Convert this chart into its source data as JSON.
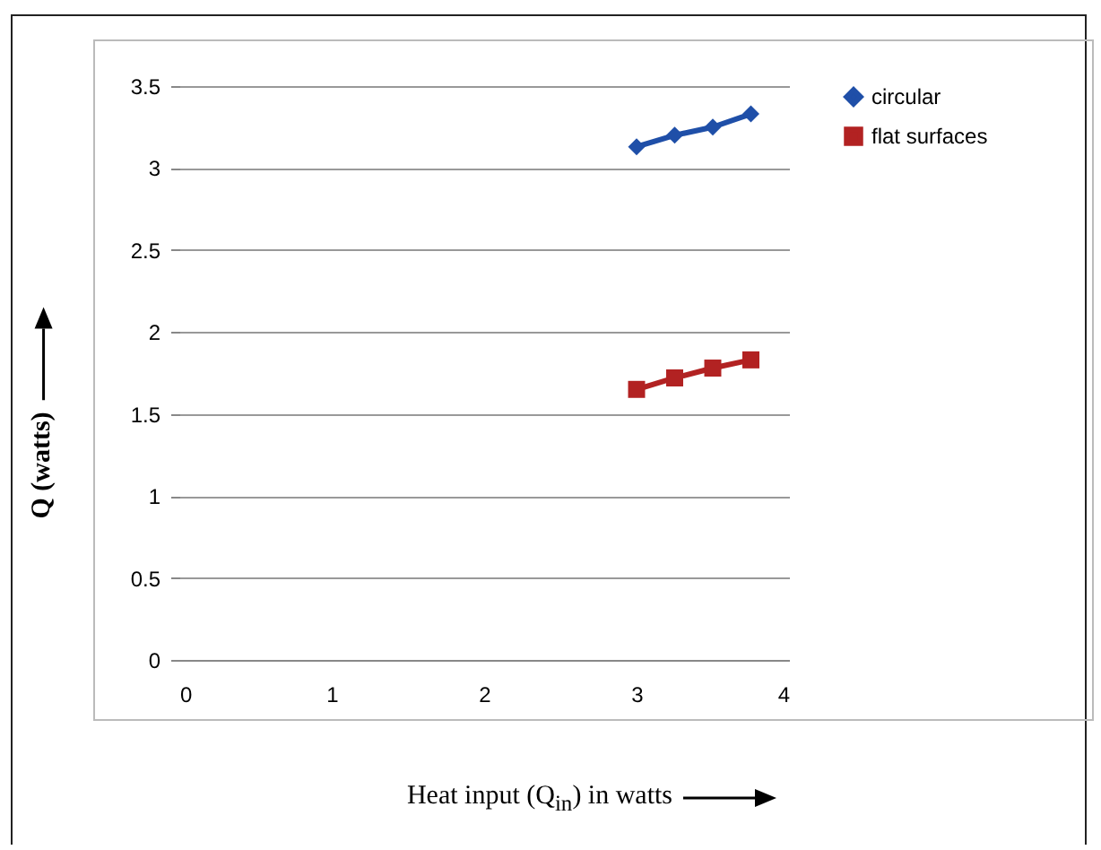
{
  "chart_data": {
    "type": "line",
    "xlabel": "Heat input (Q$_{in}$) in watts",
    "ylabel": "Q (watts)",
    "xlim": [
      0,
      4
    ],
    "xticks": [
      0,
      1,
      2,
      3,
      4
    ],
    "ylim": [
      0,
      3.5
    ],
    "yticks": [
      0,
      0.5,
      1,
      1.5,
      2,
      2.5,
      3,
      3.5
    ],
    "grid": "y",
    "legend": "right",
    "series": [
      {
        "name": "circular",
        "color": "#1f4fa8",
        "marker": "diamond",
        "x": [
          3,
          3.25,
          3.5,
          3.75
        ],
        "values": [
          3.13,
          3.2,
          3.25,
          3.33
        ]
      },
      {
        "name": "flat surfaces",
        "color": "#b22222",
        "marker": "square",
        "x": [
          3,
          3.25,
          3.5,
          3.75
        ],
        "values": [
          1.65,
          1.72,
          1.78,
          1.83
        ]
      }
    ]
  }
}
